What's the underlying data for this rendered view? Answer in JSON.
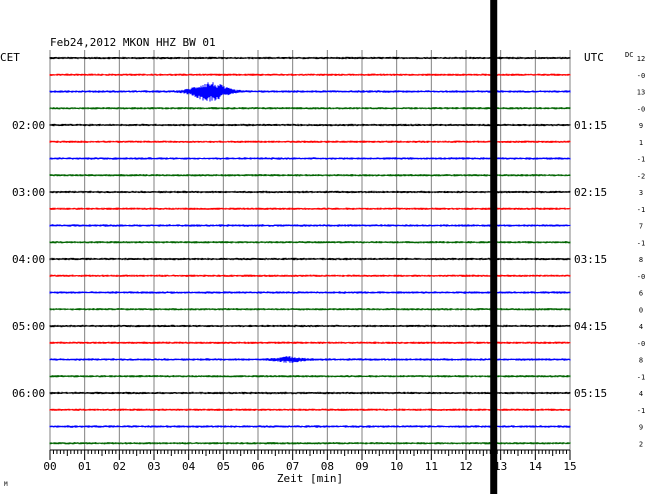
{
  "chart_data": {
    "type": "line",
    "title": "Feb24,2012   MKON HHZ BW 01",
    "left_timezone": "CET",
    "right_timezone": "UTC",
    "dc_label": "DC",
    "xlabel": "Zeit [min]",
    "xlim": [
      0,
      15
    ],
    "x_ticks": [
      "00",
      "01",
      "02",
      "03",
      "04",
      "05",
      "06",
      "07",
      "08",
      "09",
      "10",
      "11",
      "12",
      "13",
      "14",
      "15"
    ],
    "left_hour_labels": [
      {
        "trace": 4,
        "label": "02:00"
      },
      {
        "trace": 8,
        "label": "03:00"
      },
      {
        "trace": 12,
        "label": "04:00"
      },
      {
        "trace": 16,
        "label": "05:00"
      },
      {
        "trace": 20,
        "label": "06:00"
      }
    ],
    "right_hour_labels": [
      {
        "trace": 4,
        "label": "01:15"
      },
      {
        "trace": 8,
        "label": "02:15"
      },
      {
        "trace": 12,
        "label": "03:15"
      },
      {
        "trace": 16,
        "label": "04:15"
      },
      {
        "trace": 20,
        "label": "05:15"
      }
    ],
    "trace_colors": [
      "#000000",
      "#ff0000",
      "#0000ff",
      "#006400"
    ],
    "trace_count": 24,
    "dc_offsets": [
      "12",
      "-0",
      "13",
      "-0",
      "9",
      "1",
      "-1",
      "-2",
      "3",
      "-1",
      "7",
      "-1",
      "8",
      "-0",
      "6",
      "0",
      "4",
      "-0",
      "8",
      "-1",
      "4",
      "-1",
      "9",
      "2"
    ],
    "events": [
      {
        "trace": 2,
        "minute": 4.6,
        "amplitude": "large"
      },
      {
        "trace": 18,
        "minute": 6.9,
        "amplitude": "small"
      }
    ],
    "marker_minute": 12.8,
    "marker_color": "#000000",
    "grid": true,
    "corner_mark": "M"
  }
}
